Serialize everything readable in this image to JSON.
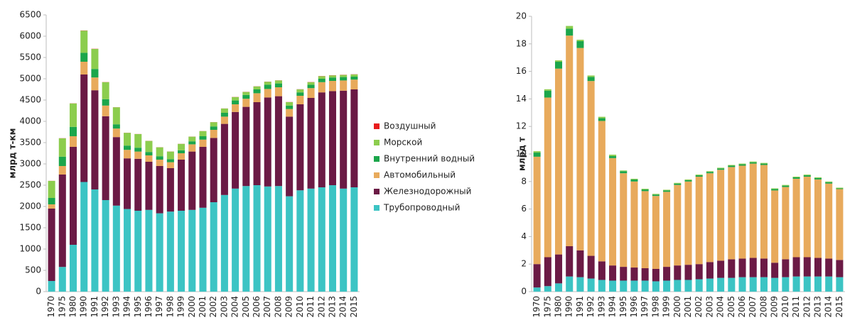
{
  "chart_data": [
    {
      "type": "bar",
      "stacked": true,
      "ylabel": "млрд т-км",
      "categories": [
        "1970",
        "1975",
        "1980",
        "1990",
        "1991",
        "1992",
        "1993",
        "1994",
        "1995",
        "1996",
        "1997",
        "1998",
        "1999",
        "2000",
        "2001",
        "2002",
        "2003",
        "2004",
        "2005",
        "2006",
        "2007",
        "2008",
        "2009",
        "2010",
        "2011",
        "2012",
        "2013",
        "2014",
        "2015"
      ],
      "ylim": [
        0,
        6500
      ],
      "yticks": [
        0,
        500,
        1000,
        1500,
        2000,
        2500,
        3000,
        3500,
        4000,
        4500,
        5000,
        5500,
        6000,
        6500
      ],
      "series": [
        {
          "name": "Трубопроводный",
          "color": "#3cc4c4",
          "values": [
            250,
            580,
            1100,
            2575,
            2400,
            2150,
            2020,
            1940,
            1900,
            1920,
            1840,
            1880,
            1900,
            1920,
            1970,
            2100,
            2270,
            2420,
            2480,
            2500,
            2470,
            2480,
            2240,
            2380,
            2420,
            2450,
            2500,
            2420,
            2450
          ]
        },
        {
          "name": "Железнодорожный",
          "color": "#6b1a45",
          "values": [
            1700,
            2170,
            2300,
            2525,
            2330,
            1970,
            1610,
            1190,
            1220,
            1130,
            1110,
            1020,
            1200,
            1370,
            1430,
            1510,
            1670,
            1800,
            1860,
            1950,
            2090,
            2110,
            1870,
            2020,
            2130,
            2230,
            2210,
            2300,
            2300
          ]
        },
        {
          "name": "Автомобильный",
          "color": "#e8aa5c",
          "values": [
            100,
            200,
            250,
            300,
            300,
            250,
            200,
            200,
            170,
            150,
            150,
            140,
            150,
            170,
            170,
            190,
            170,
            180,
            190,
            210,
            200,
            210,
            180,
            200,
            230,
            240,
            240,
            240,
            230
          ]
        },
        {
          "name": "Внутренний водный",
          "color": "#1ba64b",
          "values": [
            150,
            220,
            220,
            210,
            200,
            150,
            100,
            100,
            90,
            80,
            80,
            70,
            70,
            70,
            80,
            80,
            90,
            90,
            90,
            90,
            100,
            90,
            80,
            80,
            80,
            80,
            80,
            80,
            70
          ]
        },
        {
          "name": "Морской",
          "color": "#8ccd4e",
          "values": [
            400,
            430,
            550,
            520,
            470,
            400,
            400,
            300,
            320,
            260,
            210,
            180,
            150,
            110,
            120,
            100,
            100,
            80,
            70,
            70,
            70,
            70,
            80,
            70,
            60,
            60,
            50,
            50,
            50
          ]
        },
        {
          "name": "Воздушный",
          "color": "#e81c1c",
          "values": [
            2,
            3,
            3,
            5,
            4,
            3,
            2,
            2,
            2,
            2,
            2,
            2,
            2,
            2,
            2,
            2,
            2,
            3,
            3,
            3,
            3,
            3,
            3,
            3,
            4,
            4,
            4,
            4,
            4
          ]
        }
      ]
    },
    {
      "type": "bar",
      "stacked": true,
      "ylabel": "млрд т",
      "categories": [
        "1970",
        "1975",
        "1980",
        "1990",
        "1991",
        "1992",
        "1993",
        "1994",
        "1995",
        "1996",
        "1997",
        "1998",
        "1999",
        "2000",
        "2001",
        "2002",
        "2003",
        "2004",
        "2005",
        "2006",
        "2007",
        "2008",
        "2009",
        "2010",
        "2011",
        "2012",
        "2013",
        "2014",
        "2015"
      ],
      "ylim": [
        0,
        20
      ],
      "yticks": [
        0,
        2,
        4,
        6,
        8,
        10,
        12,
        14,
        16,
        18,
        20
      ],
      "series": [
        {
          "color": "#3cc4c4",
          "values": [
            0.3,
            0.4,
            0.6,
            1.1,
            1.05,
            0.95,
            0.85,
            0.8,
            0.8,
            0.8,
            0.8,
            0.75,
            0.8,
            0.85,
            0.85,
            0.9,
            0.95,
            1.0,
            1.0,
            1.05,
            1.05,
            1.05,
            1.0,
            1.05,
            1.1,
            1.1,
            1.1,
            1.1,
            1.05
          ]
        },
        {
          "color": "#6b1a45",
          "values": [
            1.7,
            2.1,
            2.1,
            2.2,
            1.95,
            1.65,
            1.35,
            1.1,
            1.0,
            0.95,
            0.9,
            0.9,
            1.0,
            1.05,
            1.1,
            1.1,
            1.2,
            1.25,
            1.35,
            1.35,
            1.4,
            1.35,
            1.1,
            1.3,
            1.4,
            1.4,
            1.35,
            1.3,
            1.25
          ]
        },
        {
          "color": "#e8aa5c",
          "values": [
            7.8,
            11.6,
            13.5,
            15.3,
            14.7,
            12.7,
            10.2,
            7.8,
            6.8,
            6.25,
            5.6,
            5.3,
            5.45,
            5.85,
            6.05,
            6.35,
            6.45,
            6.6,
            6.7,
            6.75,
            6.85,
            6.8,
            5.25,
            5.25,
            5.7,
            5.85,
            5.7,
            5.45,
            5.15
          ]
        },
        {
          "color": "#1ba64b",
          "values": [
            0.3,
            0.5,
            0.5,
            0.5,
            0.5,
            0.3,
            0.2,
            0.15,
            0.15,
            0.15,
            0.12,
            0.1,
            0.1,
            0.1,
            0.1,
            0.1,
            0.1,
            0.1,
            0.1,
            0.1,
            0.1,
            0.1,
            0.1,
            0.1,
            0.1,
            0.1,
            0.1,
            0.1,
            0.05
          ]
        },
        {
          "color": "#8ccd4e",
          "values": [
            0.1,
            0.1,
            0.1,
            0.2,
            0.1,
            0.1,
            0.1,
            0.1,
            0.05,
            0.05,
            0.05,
            0.05,
            0.05,
            0.05,
            0.05,
            0.05,
            0.05,
            0.05,
            0.05,
            0.05,
            0.05,
            0.05,
            0.05,
            0.05,
            0.05,
            0.05,
            0.05,
            0.05,
            0.05
          ]
        }
      ]
    }
  ]
}
